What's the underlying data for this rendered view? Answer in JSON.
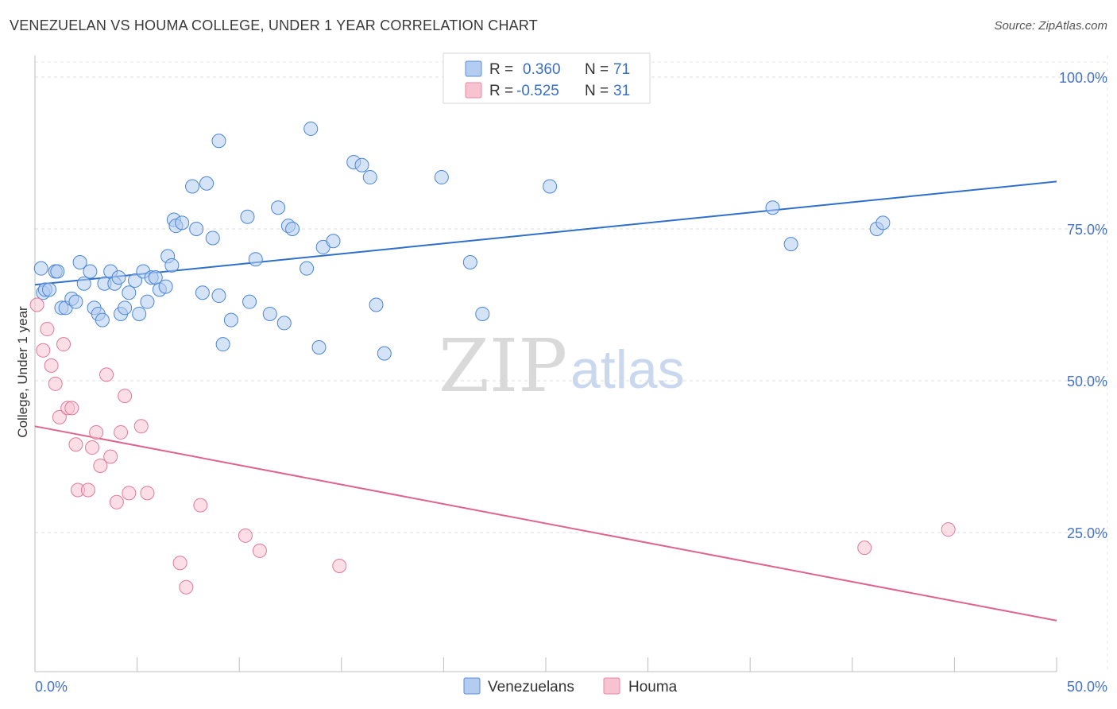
{
  "header": {
    "title": "VENEZUELAN VS HOUMA COLLEGE, UNDER 1 YEAR CORRELATION CHART",
    "source": "Source: ZipAtlas.com"
  },
  "watermark": {
    "zip": "ZIP",
    "atlas": "atlas"
  },
  "legend_box": {
    "rows": [
      {
        "r_label": "R =",
        "r_value": "0.360",
        "n_label": "N =",
        "n_value": "71",
        "color": "#a9c6ee"
      },
      {
        "r_label": "R =",
        "r_value": "-0.525",
        "n_label": "N =",
        "n_value": "31",
        "color": "#f6b8c8"
      }
    ]
  },
  "bottom_legend": [
    {
      "label": "Venezuelans",
      "color": "#a9c6ee"
    },
    {
      "label": "Houma",
      "color": "#f6b8c8"
    }
  ],
  "chart_data": {
    "type": "scatter",
    "title": "VENEZUELAN VS HOUMA COLLEGE, UNDER 1 YEAR CORRELATION CHART",
    "xlabel": "",
    "ylabel": "College, Under 1 year",
    "xlim": [
      0,
      50
    ],
    "ylim": [
      2,
      105
    ],
    "x_tick_labels": [
      "0.0%",
      "50.0%"
    ],
    "y_ticks": [
      25,
      50,
      75,
      100
    ],
    "y_tick_labels": [
      "25.0%",
      "50.0%",
      "75.0%",
      "100.0%"
    ],
    "grid": true,
    "legend": "top-center",
    "series": [
      {
        "name": "Venezuelans",
        "color": "#4a86d6",
        "fill": "#b3ccf0",
        "trend": {
          "x": [
            0,
            50
          ],
          "y": [
            65.8,
            82.8
          ],
          "color": "#2f6fcc"
        },
        "points": [
          [
            0.3,
            68.5
          ],
          [
            0.4,
            64.5
          ],
          [
            0.5,
            65
          ],
          [
            0.7,
            65
          ],
          [
            1.0,
            68
          ],
          [
            1.1,
            68
          ],
          [
            1.3,
            62
          ],
          [
            1.5,
            62
          ],
          [
            1.8,
            63.5
          ],
          [
            2.0,
            63
          ],
          [
            2.2,
            69.5
          ],
          [
            2.4,
            66
          ],
          [
            2.7,
            68
          ],
          [
            2.9,
            62
          ],
          [
            3.1,
            61
          ],
          [
            3.3,
            60
          ],
          [
            3.4,
            66
          ],
          [
            3.7,
            68
          ],
          [
            3.9,
            66
          ],
          [
            4.1,
            67
          ],
          [
            4.2,
            61
          ],
          [
            4.4,
            62
          ],
          [
            4.6,
            64.5
          ],
          [
            4.9,
            66.5
          ],
          [
            5.1,
            61
          ],
          [
            5.3,
            68
          ],
          [
            5.5,
            63
          ],
          [
            5.7,
            67
          ],
          [
            5.9,
            67
          ],
          [
            6.1,
            65
          ],
          [
            6.4,
            65.5
          ],
          [
            6.5,
            70.5
          ],
          [
            6.7,
            69
          ],
          [
            6.8,
            76.5
          ],
          [
            6.9,
            75.5
          ],
          [
            7.2,
            76
          ],
          [
            7.7,
            82
          ],
          [
            7.9,
            75
          ],
          [
            8.2,
            64.5
          ],
          [
            8.4,
            82.5
          ],
          [
            8.7,
            73.5
          ],
          [
            9.0,
            64
          ],
          [
            9.2,
            56
          ],
          [
            9.6,
            60
          ],
          [
            9.0,
            89.5
          ],
          [
            10.4,
            77
          ],
          [
            10.5,
            63
          ],
          [
            10.8,
            70
          ],
          [
            11.5,
            61
          ],
          [
            11.9,
            78.5
          ],
          [
            12.2,
            59.5
          ],
          [
            12.4,
            75.5
          ],
          [
            12.6,
            75
          ],
          [
            13.3,
            68.5
          ],
          [
            13.5,
            91.5
          ],
          [
            13.9,
            55.5
          ],
          [
            14.1,
            72
          ],
          [
            14.6,
            73
          ],
          [
            15.6,
            86
          ],
          [
            16.0,
            85.5
          ],
          [
            16.4,
            83.5
          ],
          [
            16.7,
            62.5
          ],
          [
            17.1,
            54.5
          ],
          [
            19.9,
            83.5
          ],
          [
            21.3,
            69.5
          ],
          [
            21.9,
            61
          ],
          [
            25.2,
            82
          ],
          [
            36.1,
            78.5
          ],
          [
            37.0,
            72.5
          ],
          [
            41.2,
            75
          ],
          [
            41.5,
            76
          ]
        ]
      },
      {
        "name": "Houma",
        "color": "#e07a9a",
        "fill": "#f8c3d1",
        "trend": {
          "x": [
            0,
            50
          ],
          "y": [
            42.5,
            10.5
          ],
          "color": "#e0638f"
        },
        "points": [
          [
            0.1,
            62.5
          ],
          [
            0.4,
            55
          ],
          [
            0.6,
            58.5
          ],
          [
            0.8,
            52.5
          ],
          [
            1.0,
            49.5
          ],
          [
            1.2,
            44
          ],
          [
            1.4,
            56
          ],
          [
            1.6,
            45.5
          ],
          [
            1.8,
            45.5
          ],
          [
            2.0,
            39.5
          ],
          [
            2.1,
            32
          ],
          [
            2.6,
            32
          ],
          [
            2.8,
            39
          ],
          [
            3.0,
            41.5
          ],
          [
            3.2,
            36
          ],
          [
            3.5,
            51
          ],
          [
            3.7,
            37.5
          ],
          [
            4.2,
            41.5
          ],
          [
            4.4,
            47.5
          ],
          [
            4.6,
            31.5
          ],
          [
            5.2,
            42.5
          ],
          [
            5.5,
            31.5
          ],
          [
            7.1,
            20
          ],
          [
            7.4,
            16
          ],
          [
            8.1,
            29.5
          ],
          [
            10.3,
            24.5
          ],
          [
            11.0,
            22
          ],
          [
            14.9,
            19.5
          ],
          [
            40.6,
            22.5
          ],
          [
            44.7,
            25.5
          ],
          [
            4.0,
            30
          ]
        ]
      }
    ]
  }
}
